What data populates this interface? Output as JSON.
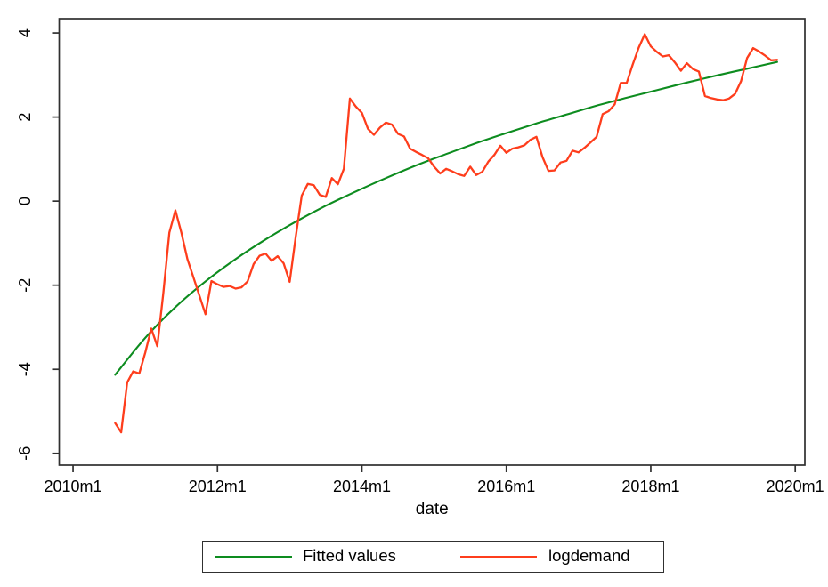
{
  "figure": {
    "background": "#ffffff",
    "frame_color": "#303030",
    "text_color": "#000000"
  },
  "chart_data": {
    "type": "line",
    "title": "",
    "xlabel": "date",
    "ylabel": "",
    "grid": false,
    "legend_position": "bottom-center",
    "x_axis": {
      "tick_labels": [
        "2010m1",
        "2012m1",
        "2014m1",
        "2016m1",
        "2018m1",
        "2020m1"
      ],
      "tick_months": [
        0,
        24,
        48,
        72,
        96,
        120
      ],
      "xlim_months": [
        -2.3,
        121.6
      ],
      "frequency": "monthly",
      "data_start": "2010m8",
      "data_end": "2019m10"
    },
    "y_axis": {
      "ticks": [
        4,
        2,
        0,
        -2,
        -4,
        -6
      ],
      "ylim": [
        -6.28,
        4.34
      ]
    },
    "series": [
      {
        "name": "Fitted values",
        "color": "#0d8c1f",
        "smooth": true,
        "line_width": 2.1,
        "x_start_month": 7,
        "x_step": 5,
        "values": [
          -4.13,
          -3.25,
          -2.52,
          -1.91,
          -1.38,
          -0.91,
          -0.49,
          -0.11,
          0.23,
          0.55,
          0.85,
          1.12,
          1.38,
          1.62,
          1.85,
          2.06,
          2.27,
          2.46,
          2.64,
          2.82,
          2.99,
          3.15,
          3.31
        ]
      },
      {
        "name": "logdemand",
        "color": "#fe3d1c",
        "smooth": false,
        "line_width": 2.3,
        "x_start_month": 7,
        "x_step": 1,
        "values": [
          -5.28,
          -5.5,
          -4.31,
          -4.05,
          -4.1,
          -3.6,
          -3.03,
          -3.45,
          -2.19,
          -0.75,
          -0.22,
          -0.75,
          -1.38,
          -1.81,
          -2.25,
          -2.69,
          -1.9,
          -1.98,
          -2.04,
          -2.02,
          -2.08,
          -2.05,
          -1.91,
          -1.5,
          -1.3,
          -1.25,
          -1.42,
          -1.31,
          -1.48,
          -1.92,
          -0.86,
          0.13,
          0.41,
          0.38,
          0.15,
          0.1,
          0.55,
          0.4,
          0.77,
          2.44,
          2.25,
          2.1,
          1.72,
          1.58,
          1.75,
          1.87,
          1.82,
          1.6,
          1.54,
          1.25,
          1.17,
          1.1,
          1.02,
          0.82,
          0.66,
          0.77,
          0.71,
          0.64,
          0.6,
          0.82,
          0.62,
          0.7,
          0.94,
          1.1,
          1.32,
          1.15,
          1.25,
          1.28,
          1.33,
          1.46,
          1.53,
          1.05,
          0.72,
          0.73,
          0.92,
          0.96,
          1.2,
          1.16,
          1.27,
          1.4,
          1.53,
          2.07,
          2.14,
          2.3,
          2.81,
          2.81,
          3.25,
          3.65,
          3.97,
          3.68,
          3.55,
          3.44,
          3.47,
          3.3,
          3.1,
          3.28,
          3.14,
          3.08,
          2.5,
          2.45,
          2.42,
          2.4,
          2.44,
          2.55,
          2.85,
          3.4,
          3.64,
          3.56,
          3.46,
          3.35,
          3.36
        ]
      }
    ]
  }
}
